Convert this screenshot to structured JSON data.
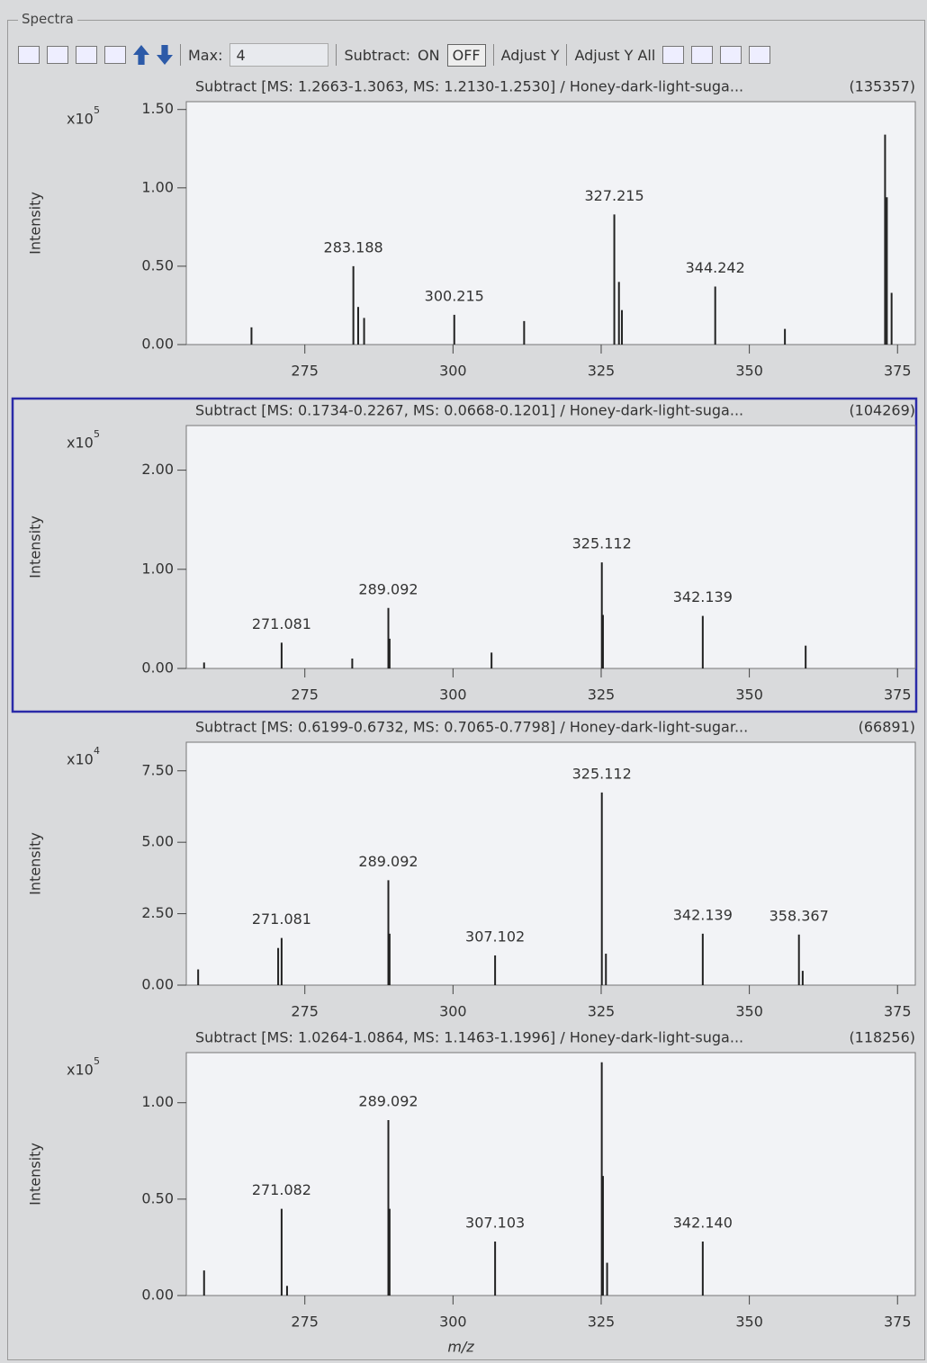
{
  "window": {
    "title": "Spectra"
  },
  "toolbar": {
    "max_label": "Max:",
    "max_value": "4",
    "subtract_label": "Subtract:",
    "on": "ON",
    "off": "OFF",
    "adjust_y": "Adjust Y",
    "adjust_y_all": "Adjust Y All"
  },
  "chart_data": [
    {
      "type": "spectrum",
      "subtitle": "Subtract [MS: 1.2663-1.3063, MS: 1.2130-1.2530] / Honey-dark-light-suga...",
      "count_label": "(135357)",
      "ylabel": "Intensity",
      "y_scale_base": "x10",
      "y_scale_exp": "5",
      "x": [
        266,
        283.188,
        284,
        285,
        300.215,
        312,
        327.215,
        328,
        328.5,
        344.242,
        356,
        372.9,
        373.2,
        374
      ],
      "values": [
        0.11,
        0.5,
        0.24,
        0.17,
        0.19,
        0.15,
        0.83,
        0.4,
        0.22,
        0.37,
        0.1,
        1.34,
        0.94,
        0.33
      ],
      "labels": [
        null,
        "283.188",
        null,
        null,
        "300.215",
        null,
        "327.215",
        null,
        null,
        "344.242",
        null,
        null,
        null,
        null
      ],
      "xlim": [
        255,
        378
      ],
      "xticks": [
        275,
        300,
        325,
        350,
        375
      ],
      "ylim": [
        0,
        1.55
      ],
      "yticks": [
        {
          "value": 0,
          "label": "0.00"
        },
        {
          "value": 0.5,
          "label": "0.50"
        },
        {
          "value": 1,
          "label": "1.00"
        },
        {
          "value": 1.5,
          "label": "1.50"
        }
      ],
      "color": "#222222"
    },
    {
      "type": "spectrum",
      "subtitle": "Subtract [MS: 0.1734-0.2267, MS: 0.0668-0.1201] / Honey-dark-light-suga...",
      "count_label": "(104269)",
      "ylabel": "Intensity",
      "y_scale_base": "x10",
      "y_scale_exp": "5",
      "x": [
        258,
        271.081,
        283,
        289.092,
        289.3,
        306.5,
        325.112,
        325.3,
        342.139,
        359.5
      ],
      "values": [
        0.06,
        0.26,
        0.1,
        0.61,
        0.3,
        0.16,
        1.07,
        0.54,
        0.53,
        0.23
      ],
      "labels": [
        null,
        "271.081",
        null,
        "289.092",
        null,
        null,
        "325.112",
        null,
        "342.139",
        null
      ],
      "xlim": [
        255,
        378
      ],
      "xticks": [
        275,
        300,
        325,
        350,
        375
      ],
      "ylim": [
        0,
        2.45
      ],
      "yticks": [
        {
          "value": 0,
          "label": "0.00"
        },
        {
          "value": 1,
          "label": "1.00"
        },
        {
          "value": 2,
          "label": "2.00"
        }
      ],
      "color": "#222222"
    },
    {
      "type": "spectrum",
      "subtitle": "Subtract [MS: 0.6199-0.6732, MS: 0.7065-0.7798] / Honey-dark-light-sugar...",
      "count_label": "(66891)",
      "ylabel": "Intensity",
      "y_scale_base": "x10",
      "y_scale_exp": "4",
      "x": [
        257,
        270.5,
        271.081,
        289.092,
        289.3,
        307.102,
        325.112,
        325.8,
        342.139,
        358.367,
        359
      ],
      "values": [
        0.55,
        1.3,
        1.65,
        3.67,
        1.8,
        1.04,
        6.74,
        1.1,
        1.8,
        1.77,
        0.5
      ],
      "labels": [
        null,
        null,
        "271.081",
        "289.092",
        null,
        "307.102",
        "325.112",
        null,
        "342.139",
        "358.367",
        null
      ],
      "xlim": [
        255,
        378
      ],
      "xticks": [
        275,
        300,
        325,
        350,
        375
      ],
      "ylim": [
        0,
        8.5
      ],
      "yticks": [
        {
          "value": 0,
          "label": "0.00"
        },
        {
          "value": 2.5,
          "label": "2.50"
        },
        {
          "value": 5,
          "label": "5.00"
        },
        {
          "value": 7.5,
          "label": "7.50"
        }
      ],
      "color": "#222222"
    },
    {
      "type": "spectrum",
      "subtitle": "Subtract [MS: 1.0264-1.0864, MS: 1.1463-1.1996] / Honey-dark-light-suga...",
      "count_label": "(118256)",
      "ylabel": "Intensity",
      "xlabel": "m/z",
      "y_scale_base": "x10",
      "y_scale_exp": "5",
      "x": [
        258,
        271.082,
        272,
        289.092,
        289.3,
        307.103,
        325.1,
        325.3,
        326,
        342.14
      ],
      "values": [
        0.13,
        0.45,
        0.05,
        0.91,
        0.45,
        0.28,
        1.21,
        0.62,
        0.17,
        0.28
      ],
      "labels": [
        null,
        "271.082",
        null,
        "289.092",
        null,
        "307.103",
        null,
        null,
        null,
        "342.140"
      ],
      "xlim": [
        255,
        378
      ],
      "xticks": [
        275,
        300,
        325,
        350,
        375
      ],
      "ylim": [
        0,
        1.26
      ],
      "yticks": [
        {
          "value": 0,
          "label": "0.00"
        },
        {
          "value": 0.5,
          "label": "0.50"
        },
        {
          "value": 1,
          "label": "1.00"
        }
      ],
      "color": "#222222"
    }
  ]
}
